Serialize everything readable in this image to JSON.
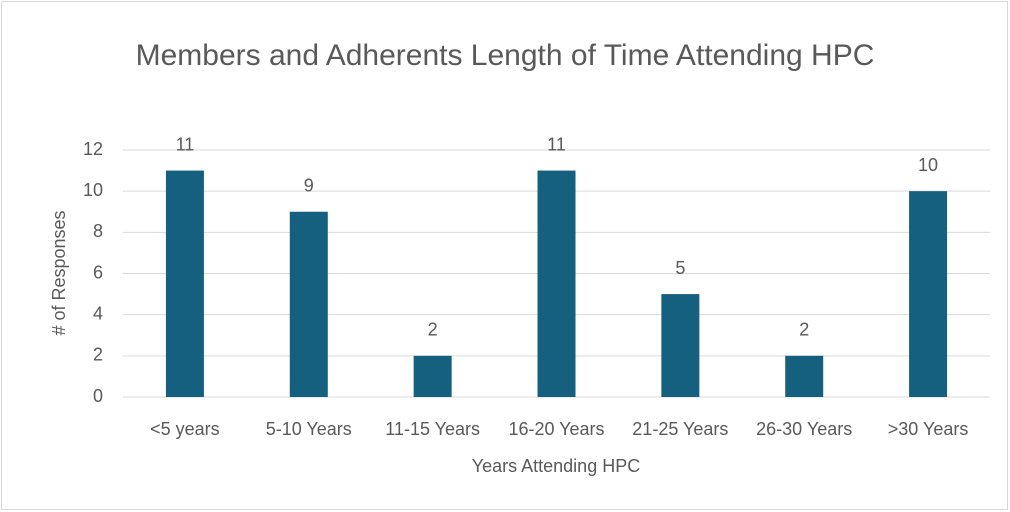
{
  "chart_data": {
    "type": "bar",
    "title": "Members and Adherents Length of Time Attending HPC",
    "x_label": "Years Attending HPC",
    "y_label": "# of Responses",
    "categories": [
      "<5 years",
      "5-10 Years",
      "11-15 Years",
      "16-20 Years",
      "21-25 Years",
      "26-30 Years",
      ">30 Years"
    ],
    "values": [
      11,
      9,
      2,
      11,
      5,
      2,
      10
    ],
    "color": "#15607f",
    "ylim": [
      0,
      12
    ],
    "yticks": [
      0,
      2,
      4,
      6,
      8,
      10,
      12
    ],
    "grid": true
  }
}
